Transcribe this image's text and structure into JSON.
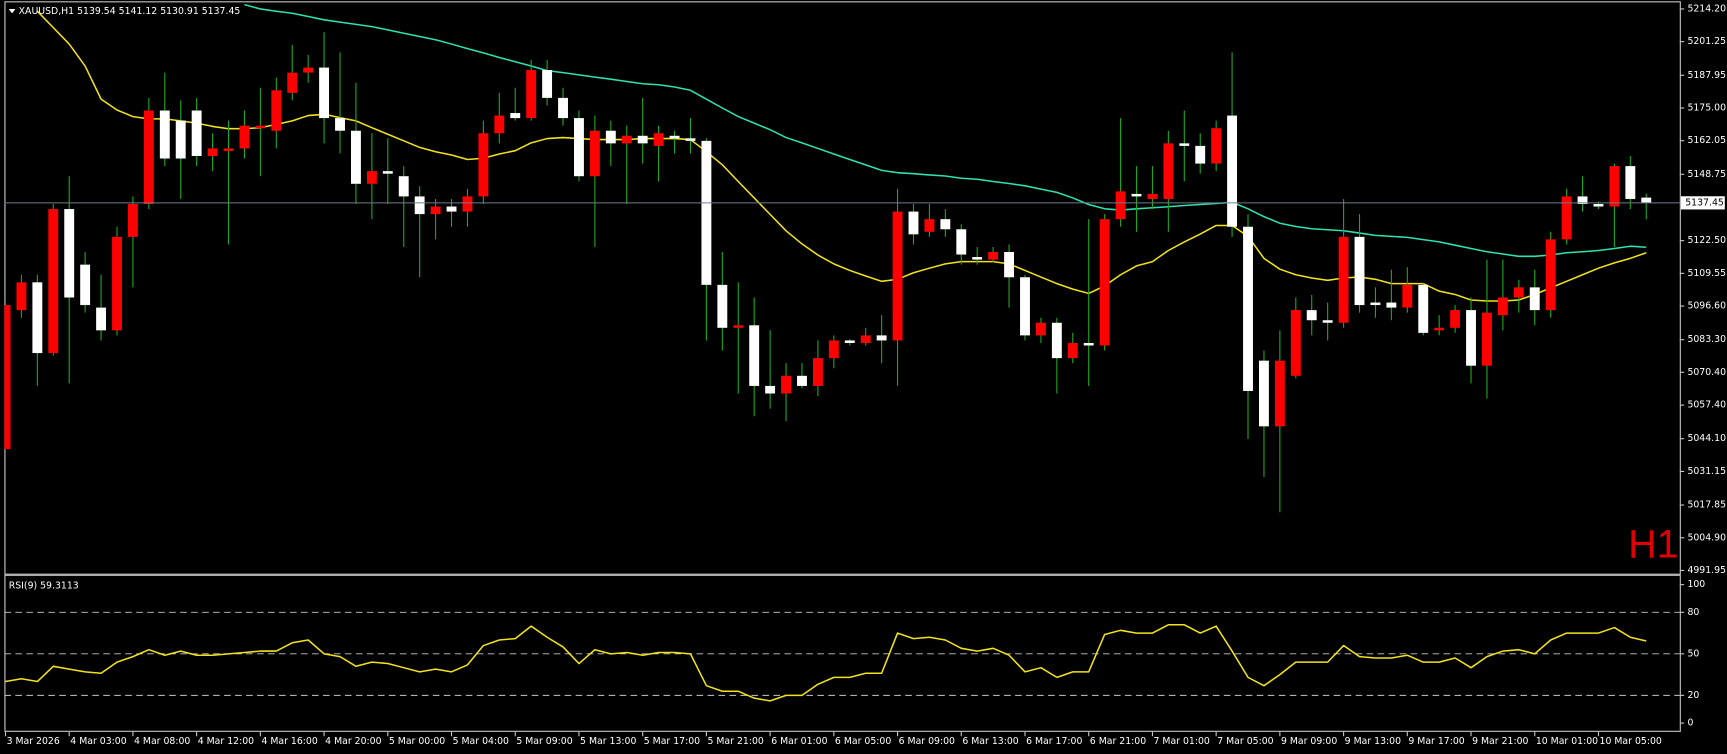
{
  "chart_data": [
    {
      "type": "candlestick",
      "title": "XAUUSD,H1",
      "annotation": "H1",
      "up_color": "#ff0000",
      "down_color": "#ffffff",
      "wick_color": "#1fa81f",
      "price_line_color": "#6c7c8c",
      "categories": [
        "3 Mar 2026",
        null,
        null,
        null,
        "4 Mar 03:00",
        null,
        null,
        null,
        "4 Mar 08:00",
        null,
        null,
        null,
        "4 Mar 12:00",
        null,
        null,
        null,
        "4 Mar 16:00",
        null,
        null,
        null,
        "4 Mar 20:00",
        null,
        null,
        null,
        "5 Mar 00:00",
        null,
        null,
        null,
        "5 Mar 04:00",
        null,
        null,
        null,
        "5 Mar 09:00",
        null,
        null,
        null,
        "5 Mar 13:00",
        null,
        null,
        null,
        "5 Mar 17:00",
        null,
        null,
        null,
        "5 Mar 21:00",
        null,
        null,
        null,
        "6 Mar 01:00",
        null,
        null,
        null,
        "6 Mar 05:00",
        null,
        null,
        null,
        "6 Mar 09:00",
        null,
        null,
        null,
        "6 Mar 13:00",
        null,
        null,
        null,
        "6 Mar 17:00",
        null,
        null,
        null,
        "6 Mar 21:00",
        null,
        null,
        null,
        "7 Mar 01:00",
        null,
        null,
        null,
        "7 Mar 05:00",
        null,
        null,
        null,
        "9 Mar 09:00",
        null,
        null,
        null,
        "9 Mar 13:00",
        null,
        null,
        null,
        "9 Mar 17:00",
        null,
        null,
        null,
        "9 Mar 21:00",
        null,
        null,
        null,
        "10 Mar 01:00",
        null,
        null,
        null,
        "10 Mar 05:00",
        null,
        null,
        null
      ],
      "open": [
        5040,
        5095,
        5106,
        5078,
        5135,
        5113,
        5096,
        5087,
        5124,
        5137,
        5174,
        5170,
        5174,
        5156,
        5158,
        5159,
        5167,
        5166,
        5181,
        5189,
        5191,
        5171,
        5166,
        5145,
        5150,
        5148,
        5140,
        5133,
        5136,
        5134,
        5140,
        5165,
        5173,
        5171,
        5190,
        5179,
        5171,
        5148,
        5166,
        5161,
        5164,
        5160,
        5164,
        5163,
        5162,
        5105,
        5088,
        5089,
        5065,
        5062,
        5069,
        5065,
        5076,
        5083,
        5082,
        5085,
        5083,
        5134,
        5126,
        5131,
        5127,
        5116,
        5115,
        5118,
        5108,
        5085,
        5090,
        5076,
        5082,
        5081,
        5131,
        5141,
        5139,
        5139,
        5161,
        5160,
        5153,
        5172,
        5128,
        5075,
        5049,
        5069,
        5095,
        5091,
        5090,
        5124,
        5098,
        5098,
        5096,
        5105,
        5087,
        5088,
        5095,
        5073,
        5093,
        5100,
        5104,
        5095,
        5123,
        5140,
        5137,
        5136,
        5152,
        5139.54
      ],
      "high": [
        5098,
        5109,
        5109,
        5137,
        5148,
        5118,
        5109,
        5128,
        5140,
        5179,
        5189,
        5178,
        5179,
        5165,
        5170,
        5174,
        5183,
        5187,
        5200,
        5196,
        5205,
        5197,
        5185,
        5165,
        5163,
        5152,
        5144,
        5139,
        5139,
        5143,
        5170,
        5181,
        5183,
        5194,
        5194,
        5183,
        5174,
        5172,
        5170,
        5168,
        5179,
        5168,
        5166,
        5171,
        5163,
        5118,
        5106,
        5100,
        5087,
        5074,
        5074,
        5083,
        5085,
        5083.5,
        5088,
        5093,
        5143,
        5137,
        5137,
        5135,
        5129,
        5120,
        5120,
        5121,
        5109,
        5092,
        5092,
        5086,
        5131,
        5133,
        5171,
        5152,
        5152,
        5166,
        5174,
        5165,
        5170,
        5197,
        5133,
        5079,
        5087,
        5100,
        5101,
        5098,
        5139,
        5133,
        5104,
        5111,
        5112,
        5105.5,
        5093,
        5097,
        5100,
        5115,
        5115,
        5107,
        5111,
        5126,
        5143,
        5148,
        5138,
        5153,
        5156,
        5141.12
      ],
      "low": [
        5040,
        5092,
        5065,
        5077,
        5066,
        5094,
        5083,
        5085,
        5104,
        5135,
        5152,
        5139,
        5152,
        5150,
        5121,
        5155,
        5148,
        5159,
        5178,
        5185,
        5161,
        5157,
        5137,
        5131,
        5137,
        5120,
        5108,
        5123,
        5128,
        5128,
        5137,
        5161,
        5170,
        5170,
        5176,
        5168,
        5146,
        5120,
        5152,
        5137,
        5153,
        5146,
        5157,
        5157,
        5083,
        5079,
        5062,
        5053,
        5056,
        5051,
        5064,
        5061,
        5072,
        5081,
        5081,
        5074,
        5065,
        5121,
        5124,
        5124,
        5113,
        5113,
        5114,
        5096,
        5083,
        5082,
        5062,
        5074,
        5065,
        5079,
        5128,
        5126,
        5135,
        5126,
        5146,
        5149,
        5150,
        5124,
        5044,
        5029,
        5015,
        5068,
        5085,
        5083,
        5088,
        5094,
        5092,
        5091,
        5094,
        5085,
        5085,
        5086,
        5066,
        5060,
        5087,
        5094,
        5089,
        5092,
        5121,
        5134,
        5135,
        5120,
        5135,
        5130.91
      ],
      "close": [
        5097,
        5106,
        5078,
        5135,
        5100,
        5097,
        5087,
        5124,
        5137,
        5174,
        5155,
        5155,
        5156,
        5159,
        5159,
        5168,
        5168,
        5182,
        5189,
        5191,
        5171,
        5166,
        5145,
        5150,
        5149,
        5140,
        5133,
        5136,
        5134,
        5140,
        5165,
        5172,
        5171,
        5190,
        5179,
        5171,
        5148,
        5166,
        5161,
        5164,
        5161,
        5165,
        5163,
        5162,
        5105,
        5088,
        5089,
        5065,
        5062,
        5069,
        5065,
        5076,
        5083,
        5082,
        5085,
        5083,
        5134,
        5125,
        5131,
        5127,
        5117,
        5115,
        5118,
        5108,
        5085,
        5090,
        5076,
        5082,
        5081,
        5131,
        5142,
        5140,
        5141,
        5161,
        5160,
        5153,
        5167,
        5128,
        5063,
        5049,
        5075,
        5095,
        5091,
        5090,
        5124,
        5097,
        5097,
        5096,
        5105,
        5086,
        5088,
        5095,
        5073,
        5094,
        5100,
        5104,
        5095,
        5123,
        5140,
        5137,
        5136,
        5152,
        5139,
        5137.45
      ],
      "moving_averages": [
        {
          "color": "#f2e21c",
          "values": [
            null,
            null,
            5213.3,
            5206.8,
            5200.3,
            5191.6,
            5178.5,
            5174.2,
            5171.6,
            5170.7,
            5170.7,
            5169.9,
            5169.0,
            5167.7,
            5166.8,
            5166.8,
            5167.2,
            5168.5,
            5169.9,
            5172.0,
            5172.5,
            5171.2,
            5169.9,
            5167.2,
            5164.6,
            5162.0,
            5159.4,
            5157.7,
            5156.4,
            5154.6,
            5155.1,
            5156.8,
            5158.1,
            5161.2,
            5162.9,
            5163.3,
            5162.9,
            5162.5,
            5162.5,
            5162.5,
            5162.9,
            5162.9,
            5162.9,
            5162.5,
            5157.7,
            5152.5,
            5145.9,
            5139.4,
            5132.9,
            5126.4,
            5121.2,
            5116.8,
            5113.3,
            5110.7,
            5108.5,
            5106.4,
            5107.2,
            5109.8,
            5111.6,
            5113.3,
            5114.2,
            5114.2,
            5114.2,
            5113.3,
            5110.7,
            5108.1,
            5105.5,
            5103.3,
            5101.6,
            5104.6,
            5109.0,
            5112.5,
            5114.2,
            5118.6,
            5122.0,
            5125.1,
            5128.5,
            5128.5,
            5124.2,
            5115.5,
            5111.2,
            5109.0,
            5107.7,
            5106.8,
            5107.7,
            5108.1,
            5107.2,
            5105.5,
            5105.5,
            5105.5,
            5102.5,
            5101.2,
            5099.0,
            5098.6,
            5098.6,
            5099.0,
            5101.2,
            5103.8,
            5106.4,
            5109.0,
            5111.6,
            5113.7,
            5115.5,
            5117.7
          ]
        },
        {
          "color": "#2fe0b0",
          "values": [
            null,
            null,
            null,
            null,
            null,
            null,
            null,
            null,
            null,
            null,
            null,
            null,
            null,
            null,
            null,
            5215.9,
            5214.2,
            5213.3,
            5212.5,
            5211.2,
            5209.9,
            5209.0,
            5208.1,
            5207.2,
            5205.9,
            5204.6,
            5203.3,
            5202.0,
            5200.3,
            5198.5,
            5196.8,
            5195.0,
            5193.3,
            5191.6,
            5189.8,
            5189.0,
            5188.1,
            5187.2,
            5186.4,
            5185.5,
            5184.6,
            5184.2,
            5183.3,
            5182.0,
            5178.5,
            5175.0,
            5171.6,
            5169.0,
            5166.4,
            5163.3,
            5161.2,
            5159.0,
            5156.8,
            5154.6,
            5152.5,
            5150.3,
            5149.4,
            5149.0,
            5148.5,
            5148.1,
            5147.2,
            5146.8,
            5145.9,
            5145.1,
            5144.2,
            5142.9,
            5141.6,
            5139.4,
            5136.8,
            5135.1,
            5134.6,
            5135.1,
            5135.5,
            5135.9,
            5136.4,
            5136.8,
            5137.2,
            5137.7,
            5135.1,
            5132.0,
            5129.4,
            5128.1,
            5127.2,
            5126.8,
            5126.4,
            5125.5,
            5124.6,
            5124.2,
            5123.8,
            5122.9,
            5122.0,
            5120.7,
            5119.4,
            5118.1,
            5117.2,
            5116.3,
            5116.3,
            5116.8,
            5117.7,
            5118.1,
            5118.6,
            5119.4,
            5120.3,
            5119.9
          ]
        }
      ],
      "ylim": [
        4990.7,
        5216.8
      ],
      "yticks": [
        {
          "value": 5214.2,
          "label": "5214.20"
        },
        5201.25,
        5187.95,
        {
          "value": 5175,
          "label": "5175.00"
        },
        5162.05,
        5148.75,
        {
          "value": 5122.5,
          "label": "5122.50"
        },
        5109.55,
        {
          "value": 5096.6,
          "label": "5096.60"
        },
        {
          "value": 5083.3,
          "label": "5083.30"
        },
        {
          "value": 5070.4,
          "label": "5070.40"
        },
        {
          "value": 5057.4,
          "label": "5057.40"
        },
        {
          "value": 5044.1,
          "label": "5044.10"
        },
        5031.15,
        5017.85,
        {
          "value": 5004.9,
          "label": "5004.90"
        },
        4991.95
      ]
    },
    {
      "type": "line",
      "title": "RSI(9)",
      "color": "#f2e21c",
      "level_color": "#c8c8c8",
      "values": [
        30,
        32,
        30,
        41,
        39,
        37,
        36,
        44,
        48,
        53,
        49,
        52,
        49,
        49,
        50,
        51,
        52,
        52,
        58,
        60,
        50,
        48,
        41,
        44,
        43,
        40,
        37,
        39,
        37,
        42,
        56,
        60,
        61,
        70,
        62,
        55,
        43,
        53,
        50,
        51,
        49,
        51,
        51,
        50,
        27,
        23,
        23,
        18,
        16,
        20,
        20,
        28,
        33,
        33,
        36,
        36,
        65,
        61,
        62,
        60,
        54,
        52,
        54,
        49,
        37,
        40,
        33,
        37,
        37,
        64,
        67,
        65,
        65,
        71,
        71,
        65,
        70,
        52,
        33,
        27,
        35,
        44,
        44,
        44,
        56,
        48,
        47,
        47,
        49,
        44,
        44,
        47,
        40,
        48,
        52,
        53,
        50,
        60,
        65,
        65,
        65,
        69,
        62,
        59.3113
      ],
      "ylim": [
        0,
        100
      ],
      "yticks": [
        0,
        20,
        50,
        80,
        100
      ]
    }
  ]
}
